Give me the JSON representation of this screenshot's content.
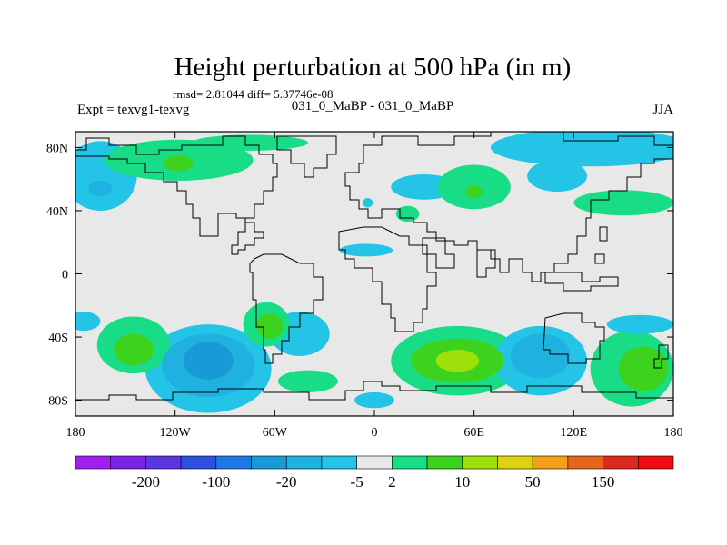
{
  "chart_data": {
    "type": "heatmap",
    "title": "Height perturbation at 500 hPa (in m)",
    "stats_line": "rmsd= 2.81044 diff= 5.37746e-08",
    "left_label": "Expt = texvg1-texvg",
    "center_label": "031_0_MaBP - 031_0_MaBP",
    "right_label": "JJA",
    "xlabel": "",
    "ylabel": "",
    "xlim": [
      -180,
      180
    ],
    "ylim": [
      -90,
      90
    ],
    "x_ticks": [
      {
        "value": -180,
        "label": "180"
      },
      {
        "value": -120,
        "label": "120W"
      },
      {
        "value": -60,
        "label": "60W"
      },
      {
        "value": 0,
        "label": "0"
      },
      {
        "value": 60,
        "label": "60E"
      },
      {
        "value": 120,
        "label": "120E"
      },
      {
        "value": 180,
        "label": "180"
      }
    ],
    "y_ticks": [
      {
        "value": 80,
        "label": "80N"
      },
      {
        "value": 40,
        "label": "40N"
      },
      {
        "value": 0,
        "label": "0"
      },
      {
        "value": -40,
        "label": "40S"
      },
      {
        "value": -80,
        "label": "80S"
      }
    ],
    "colorbar": {
      "colors": [
        "#a020f0",
        "#7b22e6",
        "#5a37e0",
        "#2d50e0",
        "#1e78e6",
        "#199ad6",
        "#1fb2e0",
        "#23c4e6",
        "#e8e8e8",
        "#19dc87",
        "#3cd21e",
        "#9ee10a",
        "#dcd20f",
        "#f0a019",
        "#e6641e",
        "#dc281e",
        "#f00a14"
      ],
      "label_values": [
        "-200",
        "-100",
        "-20",
        "-5",
        "2",
        "10",
        "50",
        "150"
      ],
      "label_after_box_index": [
        1,
        3,
        5,
        7,
        8,
        10,
        12,
        14
      ]
    },
    "regions": [
      {
        "name": "cyan-neg-arctic-pacific",
        "lon": -165,
        "lat": 62,
        "rlon": 22,
        "rlat": 22,
        "level": 7
      },
      {
        "name": "blue-neg-alaska-core",
        "lon": -165,
        "lat": 54,
        "rlon": 7,
        "rlat": 5,
        "level": 6
      },
      {
        "name": "green-pos-north-america",
        "lon": -118,
        "lat": 72,
        "rlon": 45,
        "rlat": 13,
        "level": 9
      },
      {
        "name": "green-pos-na-core",
        "lon": -118,
        "lat": 70,
        "rlon": 9,
        "rlat": 5,
        "level": 10
      },
      {
        "name": "green-pos-north-strip",
        "lon": -75,
        "lat": 83,
        "rlon": 35,
        "rlat": 5,
        "level": 9
      },
      {
        "name": "cyan-neg-arctic-east",
        "lon": 130,
        "lat": 80,
        "rlon": 60,
        "rlat": 12,
        "level": 7
      },
      {
        "name": "cyan-neg-siberia",
        "lon": 110,
        "lat": 62,
        "rlon": 18,
        "rlat": 10,
        "level": 7
      },
      {
        "name": "cyan-neg-east-asia",
        "lon": 30,
        "lat": 55,
        "rlon": 20,
        "rlat": 8,
        "level": 7
      },
      {
        "name": "green-pos-central-asia",
        "lon": 60,
        "lat": 55,
        "rlon": 22,
        "rlat": 14,
        "level": 9
      },
      {
        "name": "green-pos-central-asia-core",
        "lon": 60,
        "lat": 52,
        "rlon": 5,
        "rlat": 4,
        "level": 10
      },
      {
        "name": "green-pos-pacific-ne",
        "lon": 150,
        "lat": 45,
        "rlon": 30,
        "rlat": 8,
        "level": 9
      },
      {
        "name": "cyan-neg-south-atlantic",
        "lon": -45,
        "lat": -38,
        "rlon": 18,
        "rlat": 14,
        "level": 7
      },
      {
        "name": "cyan-neg-tibet-ish",
        "lon": -4,
        "lat": 45,
        "rlon": 3,
        "rlat": 3,
        "level": 7
      },
      {
        "name": "green-pos-med",
        "lon": 20,
        "lat": 38,
        "rlon": 7,
        "rlat": 5,
        "level": 9
      },
      {
        "name": "cyan-neg-indian-arc",
        "lon": -5,
        "lat": 15,
        "rlon": 16,
        "rlat": 4,
        "level": 7
      },
      {
        "name": "cyan-neg-south-pacific",
        "lon": -100,
        "lat": -60,
        "rlon": 38,
        "rlat": 28,
        "level": 7
      },
      {
        "name": "mid-neg-south-pacific",
        "lon": -100,
        "lat": -58,
        "rlon": 28,
        "rlat": 20,
        "level": 6
      },
      {
        "name": "deep-neg-south-pacific",
        "lon": -100,
        "lat": -55,
        "rlon": 15,
        "rlat": 12,
        "level": 5
      },
      {
        "name": "green-pos-south-pacific",
        "lon": -145,
        "lat": -45,
        "rlon": 22,
        "rlat": 18,
        "level": 9
      },
      {
        "name": "green-pos-sp-core",
        "lon": -145,
        "lat": -48,
        "rlon": 12,
        "rlat": 10,
        "level": 10
      },
      {
        "name": "cyan-neg-sp-edge",
        "lon": -175,
        "lat": -30,
        "rlon": 10,
        "rlat": 6,
        "level": 7
      },
      {
        "name": "green-pos-south-america",
        "lon": -65,
        "lat": -32,
        "rlon": 14,
        "rlat": 14,
        "level": 9
      },
      {
        "name": "green-pos-sa-core",
        "lon": -63,
        "lat": -33,
        "rlon": 8,
        "rlat": 8,
        "level": 10
      },
      {
        "name": "green-pos-south-atlantic-low",
        "lon": -40,
        "lat": -68,
        "rlon": 18,
        "rlat": 7,
        "level": 9
      },
      {
        "name": "green-pos-indian-ocean",
        "lon": 50,
        "lat": -55,
        "rlon": 40,
        "rlat": 22,
        "level": 9
      },
      {
        "name": "green-pos-io-mid",
        "lon": 50,
        "lat": -55,
        "rlon": 28,
        "rlat": 14,
        "level": 10
      },
      {
        "name": "yellow-pos-io-core",
        "lon": 50,
        "lat": -55,
        "rlon": 13,
        "rlat": 7,
        "level": 11
      },
      {
        "name": "cyan-neg-australia",
        "lon": 100,
        "lat": -55,
        "rlon": 28,
        "rlat": 22,
        "level": 7
      },
      {
        "name": "mid-neg-australia",
        "lon": 100,
        "lat": -52,
        "rlon": 18,
        "rlat": 14,
        "level": 6
      },
      {
        "name": "green-pos-tasman",
        "lon": 155,
        "lat": -60,
        "rlon": 25,
        "rlat": 24,
        "level": 9
      },
      {
        "name": "green-pos-tasman-core",
        "lon": 162,
        "lat": -60,
        "rlon": 15,
        "rlat": 14,
        "level": 10
      },
      {
        "name": "cyan-neg-nz-east",
        "lon": 160,
        "lat": -32,
        "rlon": 20,
        "rlat": 6,
        "level": 7
      },
      {
        "name": "cyan-neg-antarctic-coast",
        "lon": 0,
        "lat": -80,
        "rlon": 12,
        "rlat": 5,
        "level": 7
      }
    ]
  }
}
